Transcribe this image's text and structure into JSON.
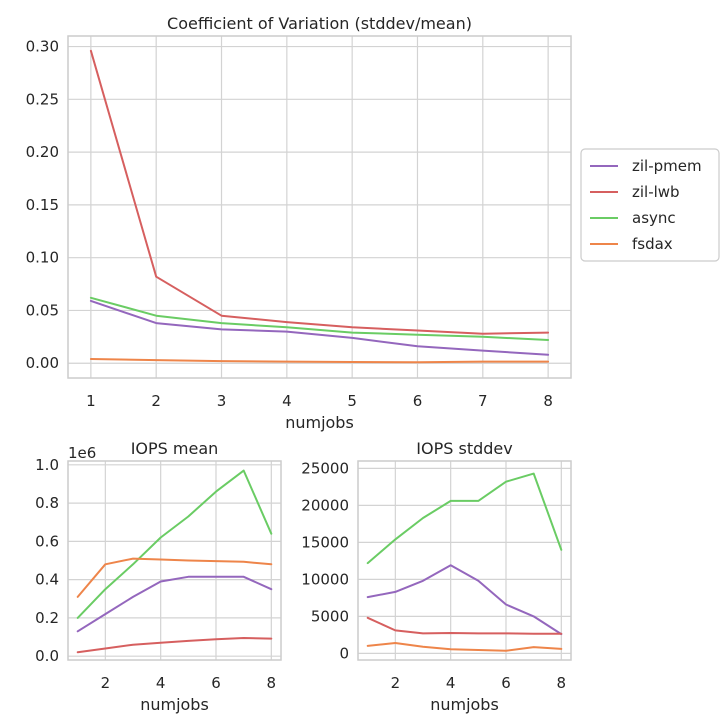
{
  "colors": {
    "zil-pmem": "#9467bd",
    "zil-lwb": "#d65f5f",
    "async": "#6acc64",
    "fsdax": "#ee854a"
  },
  "chart_data": [
    {
      "type": "line",
      "title": "Coefficient of Variation (stddev/mean)",
      "xlabel": "numjobs",
      "ylabel": "",
      "x": [
        1,
        2,
        3,
        4,
        5,
        6,
        7,
        8
      ],
      "xticks": [
        "1",
        "2",
        "3",
        "4",
        "5",
        "6",
        "7",
        "8"
      ],
      "yticks": [
        "0.00",
        "0.05",
        "0.10",
        "0.15",
        "0.20",
        "0.25",
        "0.30"
      ],
      "ylim": [
        -0.014,
        0.31
      ],
      "grid": true,
      "legend": [
        "zil-pmem",
        "zil-lwb",
        "async",
        "fsdax"
      ],
      "legend_placement": "center-right outside",
      "series": [
        {
          "name": "zil-pmem",
          "values": [
            0.059,
            0.038,
            0.032,
            0.03,
            0.024,
            0.016,
            0.012,
            0.008
          ]
        },
        {
          "name": "zil-lwb",
          "values": [
            0.296,
            0.082,
            0.045,
            0.039,
            0.034,
            0.031,
            0.028,
            0.029
          ]
        },
        {
          "name": "async",
          "values": [
            0.062,
            0.045,
            0.038,
            0.034,
            0.029,
            0.027,
            0.025,
            0.022
          ]
        },
        {
          "name": "fsdax",
          "values": [
            0.004,
            0.003,
            0.002,
            0.0015,
            0.0012,
            0.001,
            0.0015,
            0.0015
          ]
        }
      ]
    },
    {
      "type": "line",
      "title": "IOPS mean",
      "xlabel": "numjobs",
      "ylabel": "",
      "offset_text": "1e6",
      "x": [
        1,
        2,
        3,
        4,
        5,
        6,
        7,
        8
      ],
      "xticks": [
        "2",
        "4",
        "6",
        "8"
      ],
      "yticks": [
        "0.0",
        "0.2",
        "0.4",
        "0.6",
        "0.8",
        "1.0"
      ],
      "ylim": [
        -0.02,
        1.02
      ],
      "grid": true,
      "series": [
        {
          "name": "zil-pmem",
          "values": [
            0.13,
            0.22,
            0.31,
            0.39,
            0.415,
            0.415,
            0.415,
            0.35
          ]
        },
        {
          "name": "zil-lwb",
          "values": [
            0.02,
            0.04,
            0.06,
            0.07,
            0.08,
            0.088,
            0.095,
            0.092
          ]
        },
        {
          "name": "async",
          "values": [
            0.2,
            0.35,
            0.48,
            0.62,
            0.73,
            0.86,
            0.97,
            0.64
          ]
        },
        {
          "name": "fsdax",
          "values": [
            0.31,
            0.48,
            0.51,
            0.505,
            0.5,
            0.497,
            0.493,
            0.48
          ]
        }
      ]
    },
    {
      "type": "line",
      "title": "IOPS stddev",
      "xlabel": "numjobs",
      "ylabel": "",
      "x": [
        1,
        2,
        3,
        4,
        5,
        6,
        7,
        8
      ],
      "xticks": [
        "2",
        "4",
        "6",
        "8"
      ],
      "yticks": [
        "0",
        "5000",
        "10000",
        "15000",
        "20000",
        "25000"
      ],
      "ytick_values": [
        0,
        5000,
        10000,
        15000,
        20000,
        25000
      ],
      "ylim": [
        -900,
        26000
      ],
      "grid": true,
      "series": [
        {
          "name": "zil-pmem",
          "values": [
            7600,
            8300,
            9800,
            11900,
            9800,
            6600,
            5000,
            2600
          ]
        },
        {
          "name": "zil-lwb",
          "values": [
            4800,
            3100,
            2700,
            2750,
            2700,
            2700,
            2650,
            2650
          ]
        },
        {
          "name": "async",
          "values": [
            12200,
            15400,
            18300,
            20600,
            20600,
            23200,
            24300,
            14000
          ]
        },
        {
          "name": "fsdax",
          "values": [
            1000,
            1400,
            900,
            550,
            450,
            350,
            850,
            600
          ]
        }
      ]
    }
  ]
}
